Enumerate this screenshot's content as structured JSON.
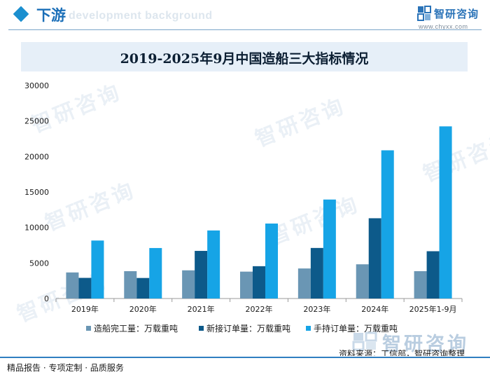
{
  "header": {
    "section_title": "下游",
    "bg_text": "development background",
    "logo_name": "智研咨询",
    "logo_url": "www.chyxx.com"
  },
  "watermark_text": "智研咨询",
  "source": "资料来源：工信部，智研咨询整理",
  "footer": "精品报告 · 专项定制 · 品质服务",
  "colors": {
    "accent": "#1b8fcf",
    "series1": "#6a96b4",
    "series2": "#0d5a8a",
    "series3": "#16a4e6",
    "title_bg": "#e6eff8"
  },
  "chart_data": {
    "type": "bar",
    "title": "2019-2025年9月中国造船三大指标情况",
    "categories": [
      "2019年",
      "2020年",
      "2021年",
      "2022年",
      "2023年",
      "2024年",
      "2025年1-9月"
    ],
    "series": [
      {
        "name": "造船完工量：万载重吨",
        "values": [
          3672,
          3853,
          3970,
          3786,
          4232,
          4818,
          3853
        ]
      },
      {
        "name": "新接订单量：万载重吨",
        "values": [
          2907,
          2893,
          6707,
          4552,
          7120,
          11305,
          6661
        ]
      },
      {
        "name": "手持订单量：万载重吨",
        "values": [
          8166,
          7111,
          9584,
          10557,
          13939,
          20872,
          24243
        ]
      }
    ],
    "yticks": [
      0,
      5000,
      10000,
      15000,
      20000,
      25000,
      30000
    ],
    "ylim": [
      0,
      30000
    ],
    "xlabel": "",
    "ylabel": "",
    "legend_position": "bottom"
  }
}
